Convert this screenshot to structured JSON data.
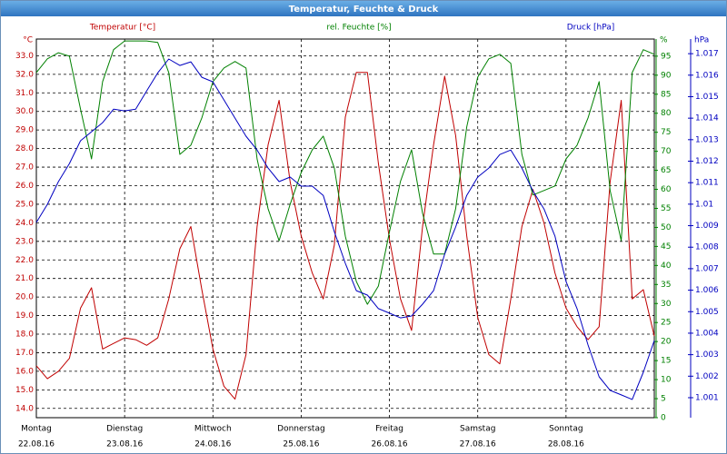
{
  "chart_data": {
    "type": "line",
    "title": "Temperatur, Feuchte & Druck",
    "ylabel": "°C",
    "y2label": "%",
    "y3label": "hPa",
    "x": [
      0,
      3,
      6,
      9,
      12,
      15,
      18,
      21,
      24,
      27,
      30,
      33,
      36,
      39,
      42,
      45,
      48,
      51,
      54,
      57,
      60,
      63,
      66,
      69,
      72,
      75,
      78,
      81,
      84,
      87,
      90,
      93,
      96,
      99,
      102,
      105,
      108,
      111,
      114,
      117,
      120,
      123,
      126,
      129,
      132,
      135,
      138,
      141,
      144,
      147,
      150,
      153,
      156,
      159,
      162,
      165,
      168
    ],
    "xlim": [
      0,
      168
    ],
    "xticks": [
      {
        "value": 0,
        "label": "Montag",
        "sublabel": "22.08.16"
      },
      {
        "value": 24,
        "label": "Dienstag",
        "sublabel": "23.08.16"
      },
      {
        "value": 48,
        "label": "Mittwoch",
        "sublabel": "24.08.16"
      },
      {
        "value": 72,
        "label": "Donnerstag",
        "sublabel": "25.08.16"
      },
      {
        "value": 96,
        "label": "Freitag",
        "sublabel": "26.08.16"
      },
      {
        "value": 120,
        "label": "Samstag",
        "sublabel": "27.08.16"
      },
      {
        "value": 144,
        "label": "Sonntag",
        "sublabel": "28.08.16"
      }
    ],
    "ylim": [
      13.5,
      33.9
    ],
    "yticks": [
      {
        "value": 14,
        "label": "14.0"
      },
      {
        "value": 15,
        "label": "15.0"
      },
      {
        "value": 16,
        "label": "16.0"
      },
      {
        "value": 17,
        "label": "17.0"
      },
      {
        "value": 18,
        "label": "18.0"
      },
      {
        "value": 19,
        "label": "19.0"
      },
      {
        "value": 20,
        "label": "20.0"
      },
      {
        "value": 21,
        "label": "21.0"
      },
      {
        "value": 22,
        "label": "22.0"
      },
      {
        "value": 23,
        "label": "23.0"
      },
      {
        "value": 24,
        "label": "24.0"
      },
      {
        "value": 25,
        "label": "25.0"
      },
      {
        "value": 26,
        "label": "26.0"
      },
      {
        "value": 27,
        "label": "27.0"
      },
      {
        "value": 28,
        "label": "28.0"
      },
      {
        "value": 29,
        "label": "29.0"
      },
      {
        "value": 30,
        "label": "30.0"
      },
      {
        "value": 31,
        "label": "31.0"
      },
      {
        "value": 32,
        "label": "32.0"
      },
      {
        "value": 33,
        "label": "33.0"
      }
    ],
    "y2lim": [
      0,
      99.5
    ],
    "y2ticks": [
      0,
      5,
      10,
      15,
      20,
      25,
      30,
      35,
      40,
      45,
      50,
      55,
      60,
      65,
      70,
      75,
      80,
      85,
      90,
      95
    ],
    "y3lim": [
      1.00007,
      1.01768
    ],
    "y3ticks": [
      1.001,
      1.002,
      1.003,
      1.004,
      1.005,
      1.006,
      1.007,
      1.008,
      1.009,
      1.01,
      1.011,
      1.012,
      1.013,
      1.014,
      1.015,
      1.016,
      1.017
    ],
    "grid": true,
    "series": [
      {
        "name": "Temperatur [°C]",
        "color": "#c00000",
        "axis": "y",
        "values": [
          16.3,
          15.6,
          16.0,
          16.7,
          19.4,
          20.5,
          17.2,
          17.5,
          17.8,
          17.7,
          17.4,
          17.8,
          19.9,
          22.6,
          23.8,
          20.4,
          17.2,
          15.2,
          14.5,
          16.9,
          23.8,
          28.2,
          30.6,
          26.2,
          23.3,
          21.3,
          19.9,
          22.8,
          29.7,
          32.1,
          32.1,
          27.2,
          23.1,
          19.9,
          18.2,
          23.8,
          28.2,
          31.9,
          28.7,
          23.3,
          18.9,
          16.9,
          16.4,
          19.9,
          23.8,
          25.8,
          24.0,
          21.3,
          19.4,
          18.4,
          17.7,
          18.4,
          26.2,
          30.6,
          19.9,
          20.4,
          17.9
        ]
      },
      {
        "name": "rel. Feuchte [%]",
        "color": "#008000",
        "axis": "y2",
        "values": [
          90.7,
          94.3,
          95.9,
          95.0,
          81.1,
          68.0,
          88.3,
          96.7,
          99.0,
          99.0,
          99.0,
          98.6,
          90.7,
          69.2,
          71.6,
          78.8,
          88.3,
          91.9,
          93.6,
          91.9,
          68.0,
          54.9,
          46.5,
          56.1,
          64.4,
          70.4,
          74.0,
          65.6,
          47.7,
          35.8,
          29.8,
          34.6,
          48.9,
          62.1,
          70.4,
          53.7,
          43.0,
          43.0,
          54.9,
          76.4,
          89.5,
          94.3,
          95.5,
          93.1,
          69.2,
          58.5,
          59.7,
          60.9,
          68.0,
          71.6,
          78.8,
          88.3,
          59.7,
          46.5,
          90.7,
          96.7,
          95.5
        ]
      },
      {
        "name": "Druck [hPa]",
        "color": "#0000c0",
        "axis": "y3",
        "values": [
          1.00915,
          1.00999,
          1.01105,
          1.01189,
          1.01295,
          1.01337,
          1.01379,
          1.01442,
          1.01434,
          1.01442,
          1.01527,
          1.01611,
          1.01675,
          1.01645,
          1.01662,
          1.0159,
          1.01569,
          1.01485,
          1.014,
          1.01316,
          1.01252,
          1.01168,
          1.01105,
          1.01126,
          1.01084,
          1.01084,
          1.01041,
          1.00872,
          1.00725,
          1.00598,
          1.00577,
          1.00514,
          1.00493,
          1.00471,
          1.0048,
          1.00535,
          1.00598,
          1.00767,
          1.00894,
          1.01041,
          1.01126,
          1.01168,
          1.01231,
          1.01252,
          1.01168,
          1.01062,
          1.00978,
          1.00851,
          1.0064,
          1.00514,
          1.00345,
          1.00197,
          1.00134,
          1.00113,
          1.00092,
          1.00218,
          1.00366
        ]
      }
    ]
  }
}
